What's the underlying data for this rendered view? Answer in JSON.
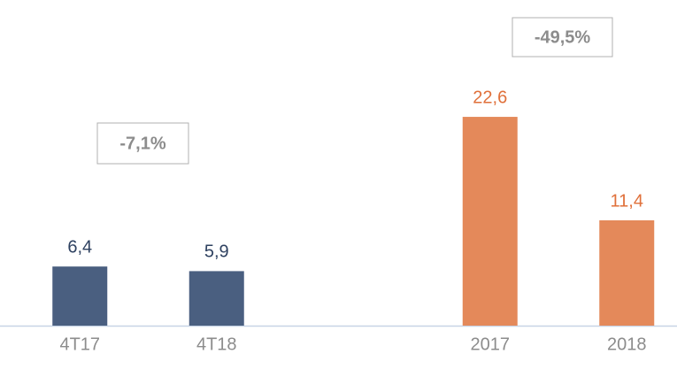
{
  "chart_data": {
    "type": "bar",
    "categories": [
      "4T17",
      "4T18",
      null,
      "2017",
      "2018"
    ],
    "values": [
      6.4,
      5.9,
      null,
      22.6,
      11.4
    ],
    "value_labels": [
      "6,4",
      "5,9",
      null,
      "22,6",
      "11,4"
    ],
    "colors": [
      "#4a5f80",
      "#4a5f80",
      null,
      "#e4895a",
      "#e4895a"
    ],
    "value_label_colors": [
      "#2e4160",
      "#2e4160",
      null,
      "#e0703a",
      "#e0703a"
    ],
    "annotations": [
      "-7,1%",
      "-49,5%"
    ]
  }
}
